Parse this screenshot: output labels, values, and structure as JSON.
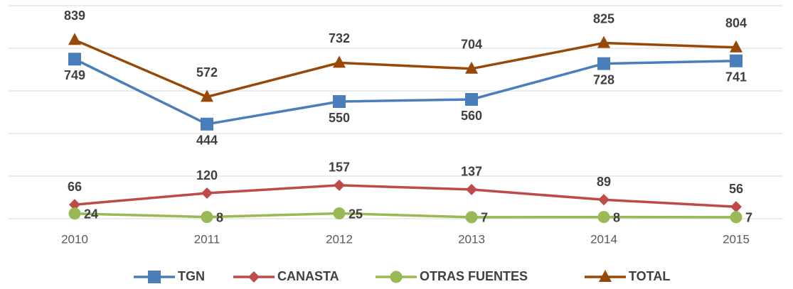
{
  "chart_data": {
    "type": "line",
    "categories": [
      "2010",
      "2011",
      "2012",
      "2013",
      "2014",
      "2015"
    ],
    "series": [
      {
        "name": "TGN",
        "color": "#4a7ebb",
        "marker": "square",
        "values": [
          749,
          444,
          550,
          560,
          728,
          741
        ]
      },
      {
        "name": "CANASTA",
        "color": "#be4b48",
        "marker": "diamond",
        "values": [
          66,
          120,
          157,
          137,
          89,
          56
        ]
      },
      {
        "name": "OTRAS FUENTES",
        "color": "#98b954",
        "marker": "circle",
        "values": [
          24,
          8,
          25,
          7,
          8,
          7
        ]
      },
      {
        "name": "TOTAL",
        "color": "#984807",
        "marker": "triangle",
        "values": [
          839,
          572,
          732,
          704,
          825,
          804
        ]
      }
    ],
    "ylim": [
      0,
      1000
    ],
    "yticks": [
      0,
      200,
      400,
      600,
      800,
      1000
    ],
    "grid": true,
    "legend": "bottom"
  }
}
